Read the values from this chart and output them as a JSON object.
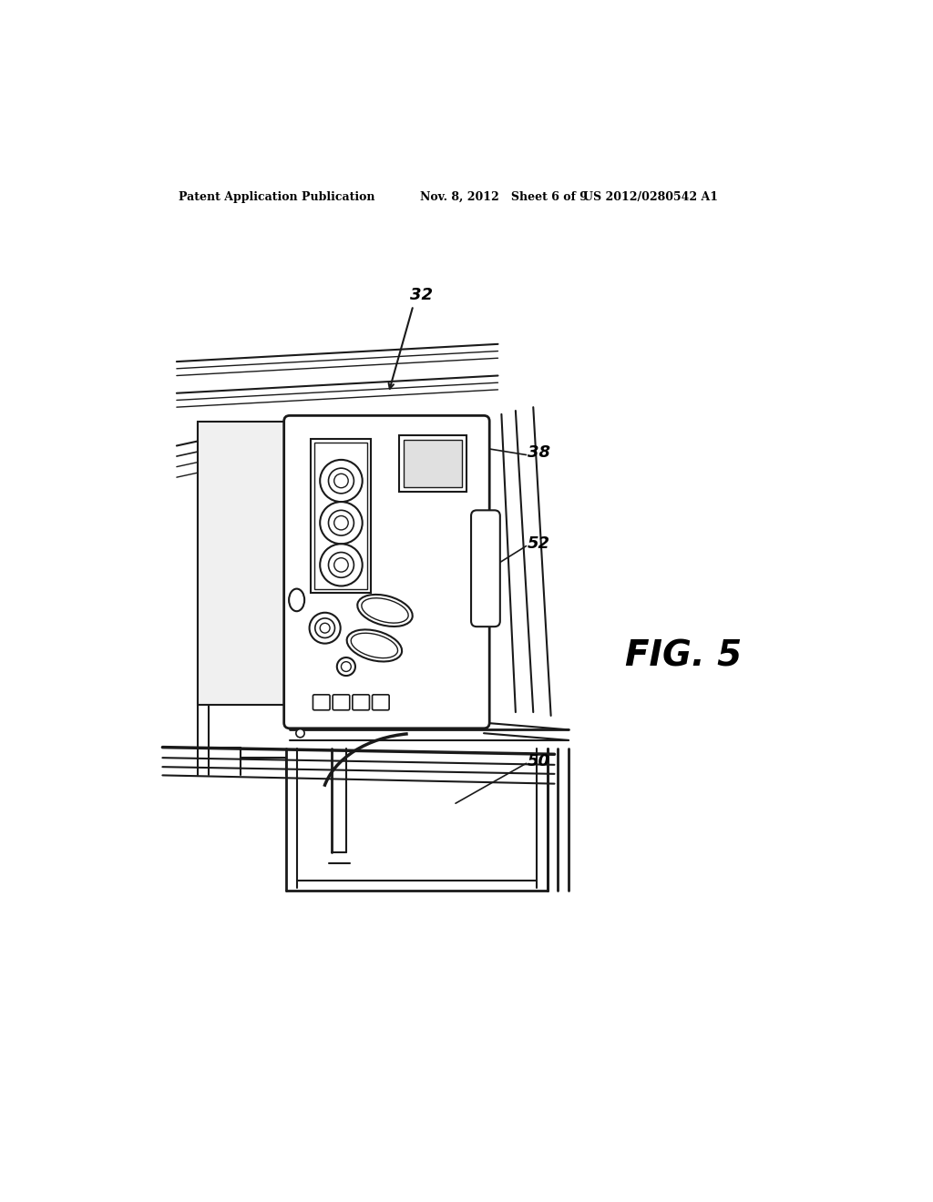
{
  "background_color": "#ffffff",
  "header_text_left": "Patent Application Publication",
  "header_text_mid": "Nov. 8, 2012   Sheet 6 of 9",
  "header_text_right": "US 2012/0280542 A1",
  "fig_label": "FIG. 5",
  "line_color": "#1a1a1a",
  "lw": 1.4
}
